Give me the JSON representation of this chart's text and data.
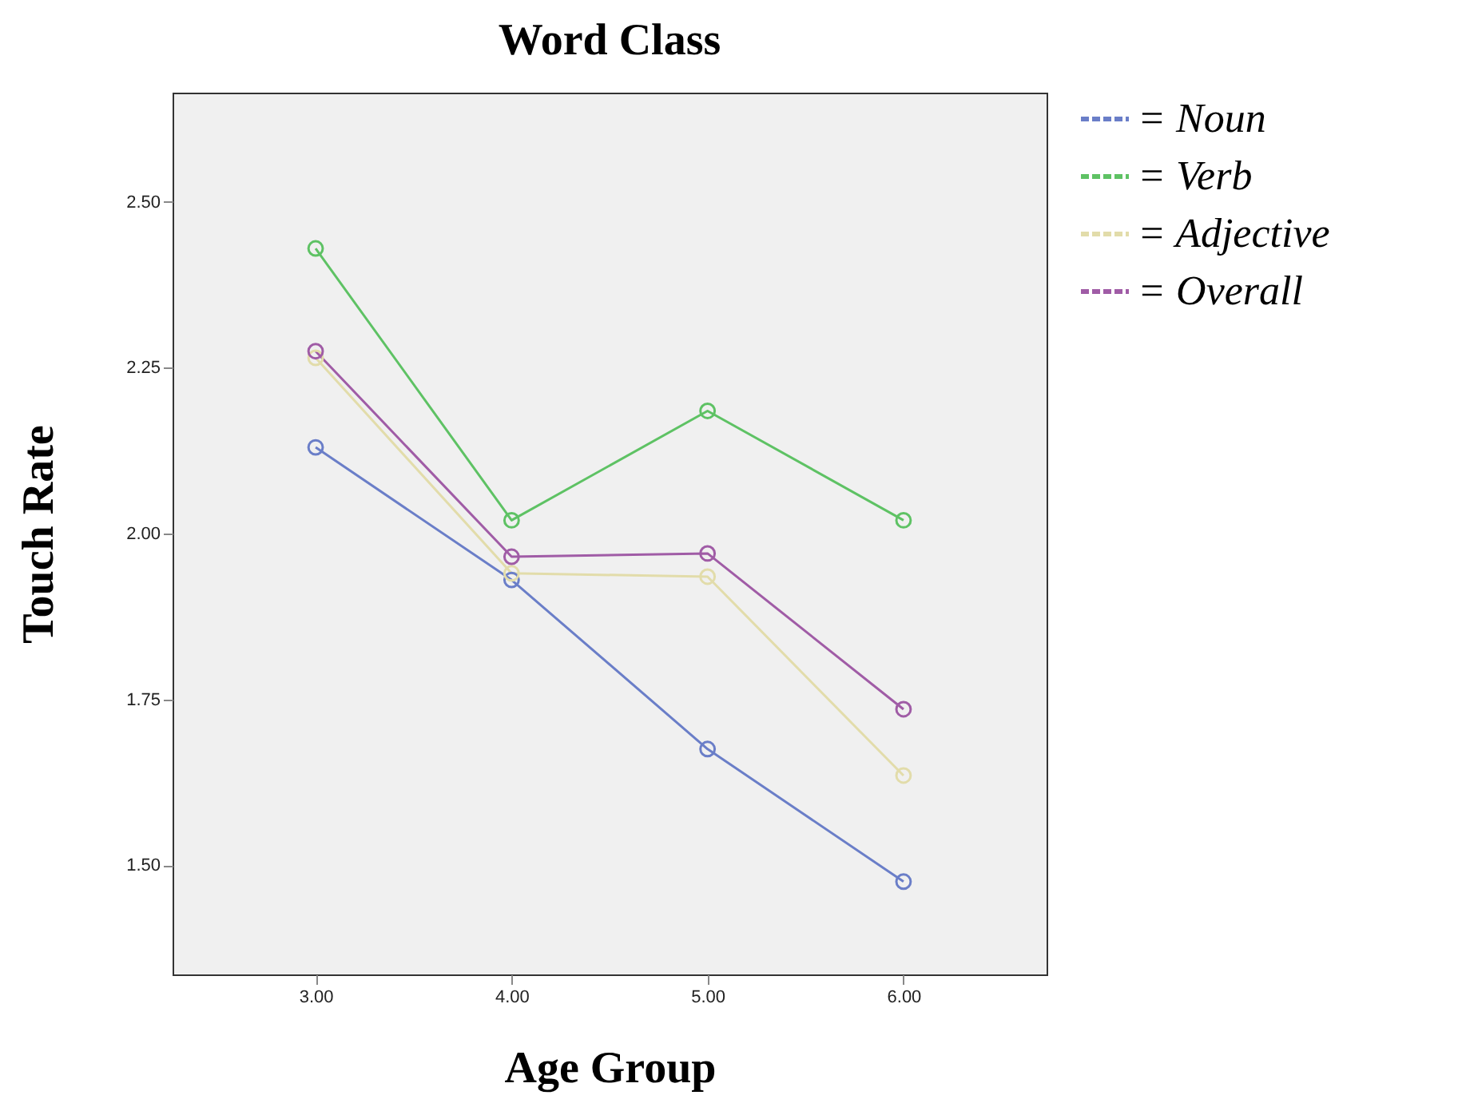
{
  "chart_data": {
    "type": "line",
    "title": "Word Class",
    "xlabel": "Age Group",
    "ylabel": "Touch Rate",
    "x": [
      3,
      4,
      5,
      6
    ],
    "series": [
      {
        "name": "= Noun",
        "color": "#6a7ec8",
        "values": [
          2.13,
          1.93,
          1.675,
          1.475
        ]
      },
      {
        "name": "= Verb",
        "color": "#5ec264",
        "values": [
          2.43,
          2.02,
          2.185,
          2.02
        ]
      },
      {
        "name": "= Adjective",
        "color": "#e2dcaa",
        "values": [
          2.265,
          1.94,
          1.935,
          1.635
        ]
      },
      {
        "name": "= Overall",
        "color": "#a05ca6",
        "values": [
          2.275,
          1.965,
          1.97,
          1.735
        ]
      }
    ],
    "xlim": [
      2.27,
      6.73
    ],
    "ylim": [
      1.335,
      2.665
    ],
    "xticks": [
      {
        "value": 3,
        "label": "3.00"
      },
      {
        "value": 4,
        "label": "4.00"
      },
      {
        "value": 5,
        "label": "5.00"
      },
      {
        "value": 6,
        "label": "6.00"
      }
    ],
    "yticks": [
      {
        "value": 1.5,
        "label": "1.50"
      },
      {
        "value": 1.75,
        "label": "1.75"
      },
      {
        "value": 2,
        "label": "2.00"
      },
      {
        "value": 2.25,
        "label": "2.25"
      },
      {
        "value": 2.5,
        "label": "2.50"
      }
    ],
    "marker": "circle",
    "line_style": "solid",
    "legend": "right",
    "grid": false
  }
}
